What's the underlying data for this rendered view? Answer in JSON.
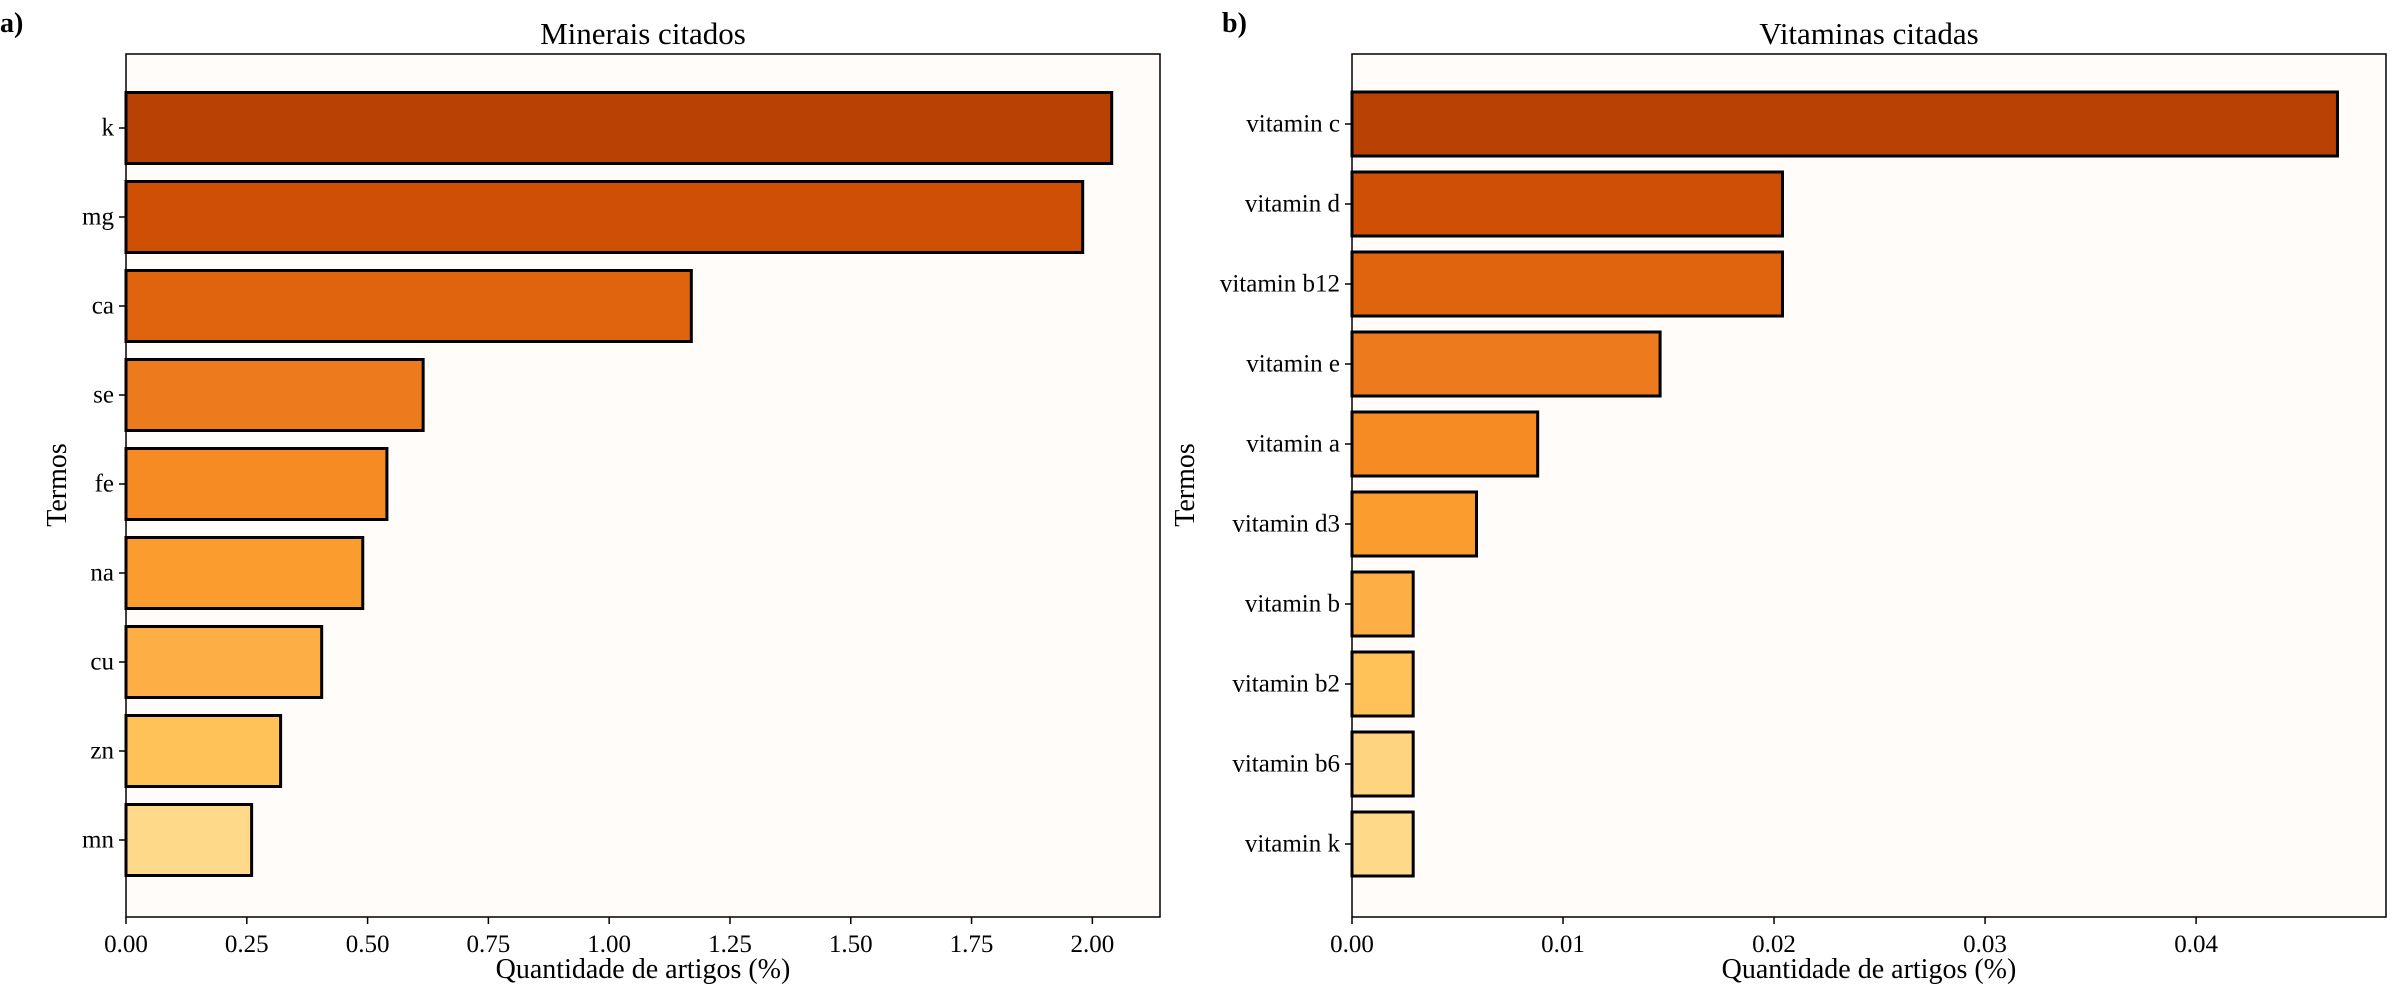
{
  "figure": {
    "background_color": "#ffffff",
    "plot_background_color": "#fffcfa",
    "palette": [
      "#b84103",
      "#cf4f05",
      "#e0640e",
      "#ee7a1e",
      "#f68b24",
      "#fb9c2f",
      "#fdaf46",
      "#fec258",
      "#fed47e",
      "#fed98a"
    ]
  },
  "chart_data": [
    {
      "type": "bar",
      "orientation": "horizontal",
      "panel_label": "a)",
      "title": "Minerais citados",
      "xlabel": "Quantidade de artigos (%)",
      "ylabel": "Termos",
      "categories": [
        "k",
        "mg",
        "ca",
        "se",
        "fe",
        "na",
        "cu",
        "zn",
        "mn"
      ],
      "values": [
        2.04,
        1.98,
        1.17,
        0.615,
        0.54,
        0.49,
        0.405,
        0.32,
        0.26
      ],
      "xlim": [
        0,
        2.14
      ],
      "xticks": [
        0,
        0.25,
        0.5,
        0.75,
        1.0,
        1.25,
        1.5,
        1.75,
        2.0
      ],
      "xtick_labels": [
        "0.00",
        "0.25",
        "0.50",
        "0.75",
        "1.00",
        "1.25",
        "1.50",
        "1.75",
        "2.00"
      ],
      "colors": [
        "#b84103",
        "#cf4f05",
        "#e0640e",
        "#ee7a1e",
        "#f68b24",
        "#fb9c2f",
        "#fdaf46",
        "#fec258",
        "#fed98a"
      ],
      "grid": false,
      "legend": "none"
    },
    {
      "type": "bar",
      "orientation": "horizontal",
      "panel_label": "b)",
      "title": "Vitaminas citadas",
      "xlabel": "Quantidade de artigos (%)",
      "ylabel": "Termos",
      "categories": [
        "vitamin c",
        "vitamin d",
        "vitamin b12",
        "vitamin e",
        "vitamin a",
        "vitamin d3",
        "vitamin b",
        "vitamin b2",
        "vitamin b6",
        "vitamin k"
      ],
      "values": [
        0.0467,
        0.0204,
        0.0204,
        0.0146,
        0.0088,
        0.0059,
        0.0029,
        0.0029,
        0.0029,
        0.0029
      ],
      "xlim": [
        0,
        0.049
      ],
      "xticks": [
        0,
        0.01,
        0.02,
        0.03,
        0.04
      ],
      "xtick_labels": [
        "0.00",
        "0.01",
        "0.02",
        "0.03",
        "0.04"
      ],
      "colors": [
        "#b84103",
        "#cf4f05",
        "#e0640e",
        "#ee7a1e",
        "#f68b24",
        "#fb9c2f",
        "#fdaf46",
        "#fec258",
        "#fed47e",
        "#fed98a"
      ],
      "grid": false,
      "legend": "none"
    }
  ]
}
